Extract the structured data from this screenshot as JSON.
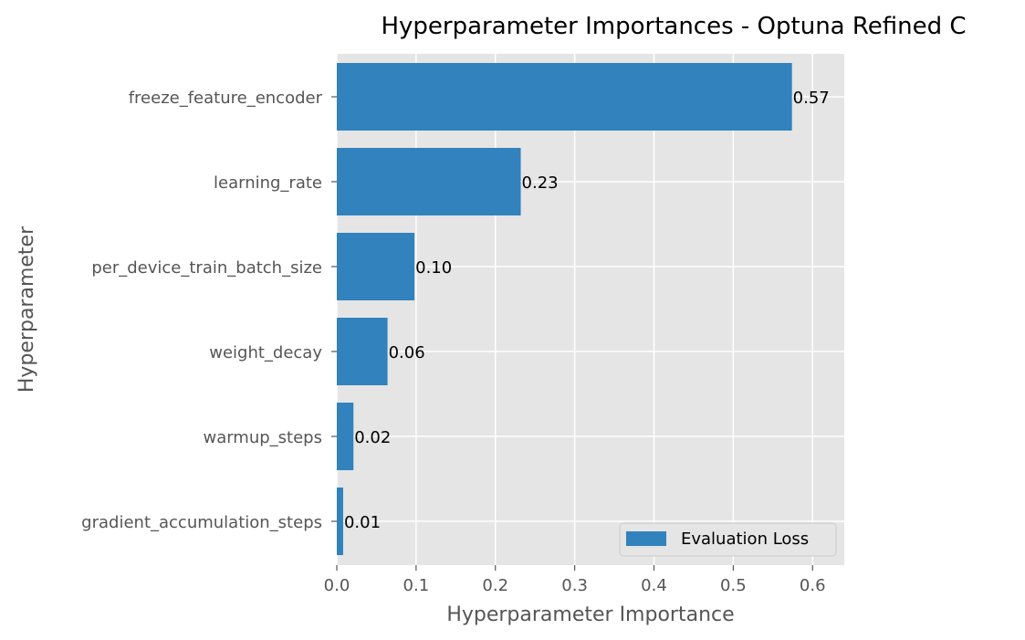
{
  "chart_data": {
    "type": "bar",
    "orientation": "horizontal",
    "title": "Hyperparameter Importances - Optuna Refined C",
    "xlabel": "Hyperparameter Importance",
    "ylabel": "Hyperparameter",
    "categories": [
      "freeze_feature_encoder",
      "learning_rate",
      "per_device_train_batch_size",
      "weight_decay",
      "warmup_steps",
      "gradient_accumulation_steps"
    ],
    "series": [
      {
        "name": "Evaluation Loss",
        "values": [
          0.574,
          0.232,
          0.098,
          0.064,
          0.021,
          0.008
        ],
        "labels": [
          "0.57",
          "0.23",
          "0.10",
          "0.06",
          "0.02",
          "0.01"
        ]
      }
    ],
    "xlim": [
      0,
      0.64
    ],
    "xticks": [
      0.0,
      0.1,
      0.2,
      0.3,
      0.4,
      0.5,
      0.6
    ],
    "xtick_labels": [
      "0.0",
      "0.1",
      "0.2",
      "0.3",
      "0.4",
      "0.5",
      "0.6"
    ],
    "grid": true,
    "legend_position": "bottom-right",
    "colors": {
      "bar": "#3182bd",
      "background": "#e5e5e5",
      "grid": "#ffffff"
    }
  }
}
